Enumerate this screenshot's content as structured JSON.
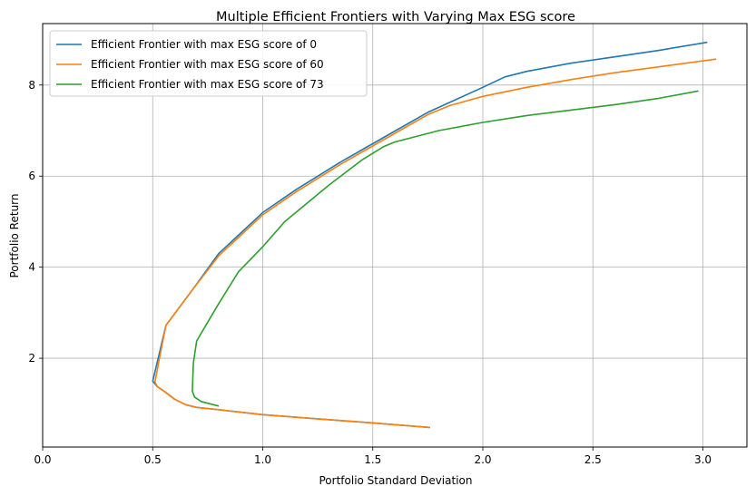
{
  "chart_data": {
    "type": "line",
    "title": "Multiple Efficient Frontiers with Varying Max ESG score",
    "xlabel": "Portfolio Standard Deviation",
    "ylabel": "Portfolio Return",
    "xlim": [
      0.0,
      3.2
    ],
    "ylim": [
      0.05,
      9.35
    ],
    "x_ticks": [
      "0.0",
      "0.5",
      "1.0",
      "1.5",
      "2.0",
      "2.5",
      "3.0"
    ],
    "y_ticks": [
      "2",
      "4",
      "6",
      "8"
    ],
    "grid": true,
    "legend_position": "top-left",
    "series": [
      {
        "name": "Efficient Frontier with max ESG score of 0",
        "color": "#1f77b4",
        "points": [
          [
            1.76,
            0.48
          ],
          [
            1.5,
            0.58
          ],
          [
            1.25,
            0.67
          ],
          [
            1.0,
            0.76
          ],
          [
            0.8,
            0.87
          ],
          [
            0.7,
            0.92
          ],
          [
            0.65,
            0.98
          ],
          [
            0.6,
            1.1
          ],
          [
            0.55,
            1.28
          ],
          [
            0.52,
            1.38
          ],
          [
            0.5,
            1.5
          ],
          [
            0.53,
            2.1
          ],
          [
            0.56,
            2.72
          ],
          [
            0.68,
            3.5
          ],
          [
            0.8,
            4.3
          ],
          [
            0.9,
            4.75
          ],
          [
            1.0,
            5.2
          ],
          [
            1.15,
            5.7
          ],
          [
            1.35,
            6.3
          ],
          [
            1.55,
            6.85
          ],
          [
            1.75,
            7.4
          ],
          [
            2.0,
            7.95
          ],
          [
            2.1,
            8.18
          ],
          [
            2.2,
            8.3
          ],
          [
            2.4,
            8.48
          ],
          [
            2.6,
            8.62
          ],
          [
            2.8,
            8.76
          ],
          [
            3.02,
            8.94
          ]
        ]
      },
      {
        "name": "Efficient Frontier with max ESG score of 60",
        "color": "#ff7f0e",
        "points": [
          [
            1.76,
            0.48
          ],
          [
            1.5,
            0.58
          ],
          [
            1.25,
            0.67
          ],
          [
            1.0,
            0.76
          ],
          [
            0.8,
            0.87
          ],
          [
            0.7,
            0.92
          ],
          [
            0.65,
            0.98
          ],
          [
            0.6,
            1.1
          ],
          [
            0.55,
            1.28
          ],
          [
            0.52,
            1.38
          ],
          [
            0.51,
            1.48
          ],
          [
            0.535,
            2.1
          ],
          [
            0.56,
            2.72
          ],
          [
            0.68,
            3.5
          ],
          [
            0.8,
            4.25
          ],
          [
            0.9,
            4.7
          ],
          [
            1.0,
            5.15
          ],
          [
            1.15,
            5.65
          ],
          [
            1.35,
            6.25
          ],
          [
            1.55,
            6.8
          ],
          [
            1.75,
            7.35
          ],
          [
            1.85,
            7.55
          ],
          [
            2.0,
            7.75
          ],
          [
            2.2,
            7.95
          ],
          [
            2.4,
            8.12
          ],
          [
            2.6,
            8.27
          ],
          [
            2.8,
            8.4
          ],
          [
            3.06,
            8.57
          ]
        ]
      },
      {
        "name": "Efficient Frontier with max ESG score of 73",
        "color": "#2ca02c",
        "points": [
          [
            0.8,
            0.95
          ],
          [
            0.72,
            1.05
          ],
          [
            0.69,
            1.15
          ],
          [
            0.68,
            1.28
          ],
          [
            0.685,
            1.9
          ],
          [
            0.7,
            2.38
          ],
          [
            0.8,
            3.2
          ],
          [
            0.89,
            3.9
          ],
          [
            1.0,
            4.45
          ],
          [
            1.1,
            5.0
          ],
          [
            1.3,
            5.8
          ],
          [
            1.45,
            6.35
          ],
          [
            1.55,
            6.65
          ],
          [
            1.6,
            6.75
          ],
          [
            1.8,
            7.0
          ],
          [
            2.0,
            7.18
          ],
          [
            2.2,
            7.33
          ],
          [
            2.4,
            7.45
          ],
          [
            2.6,
            7.57
          ],
          [
            2.8,
            7.71
          ],
          [
            2.98,
            7.87
          ]
        ]
      }
    ]
  }
}
